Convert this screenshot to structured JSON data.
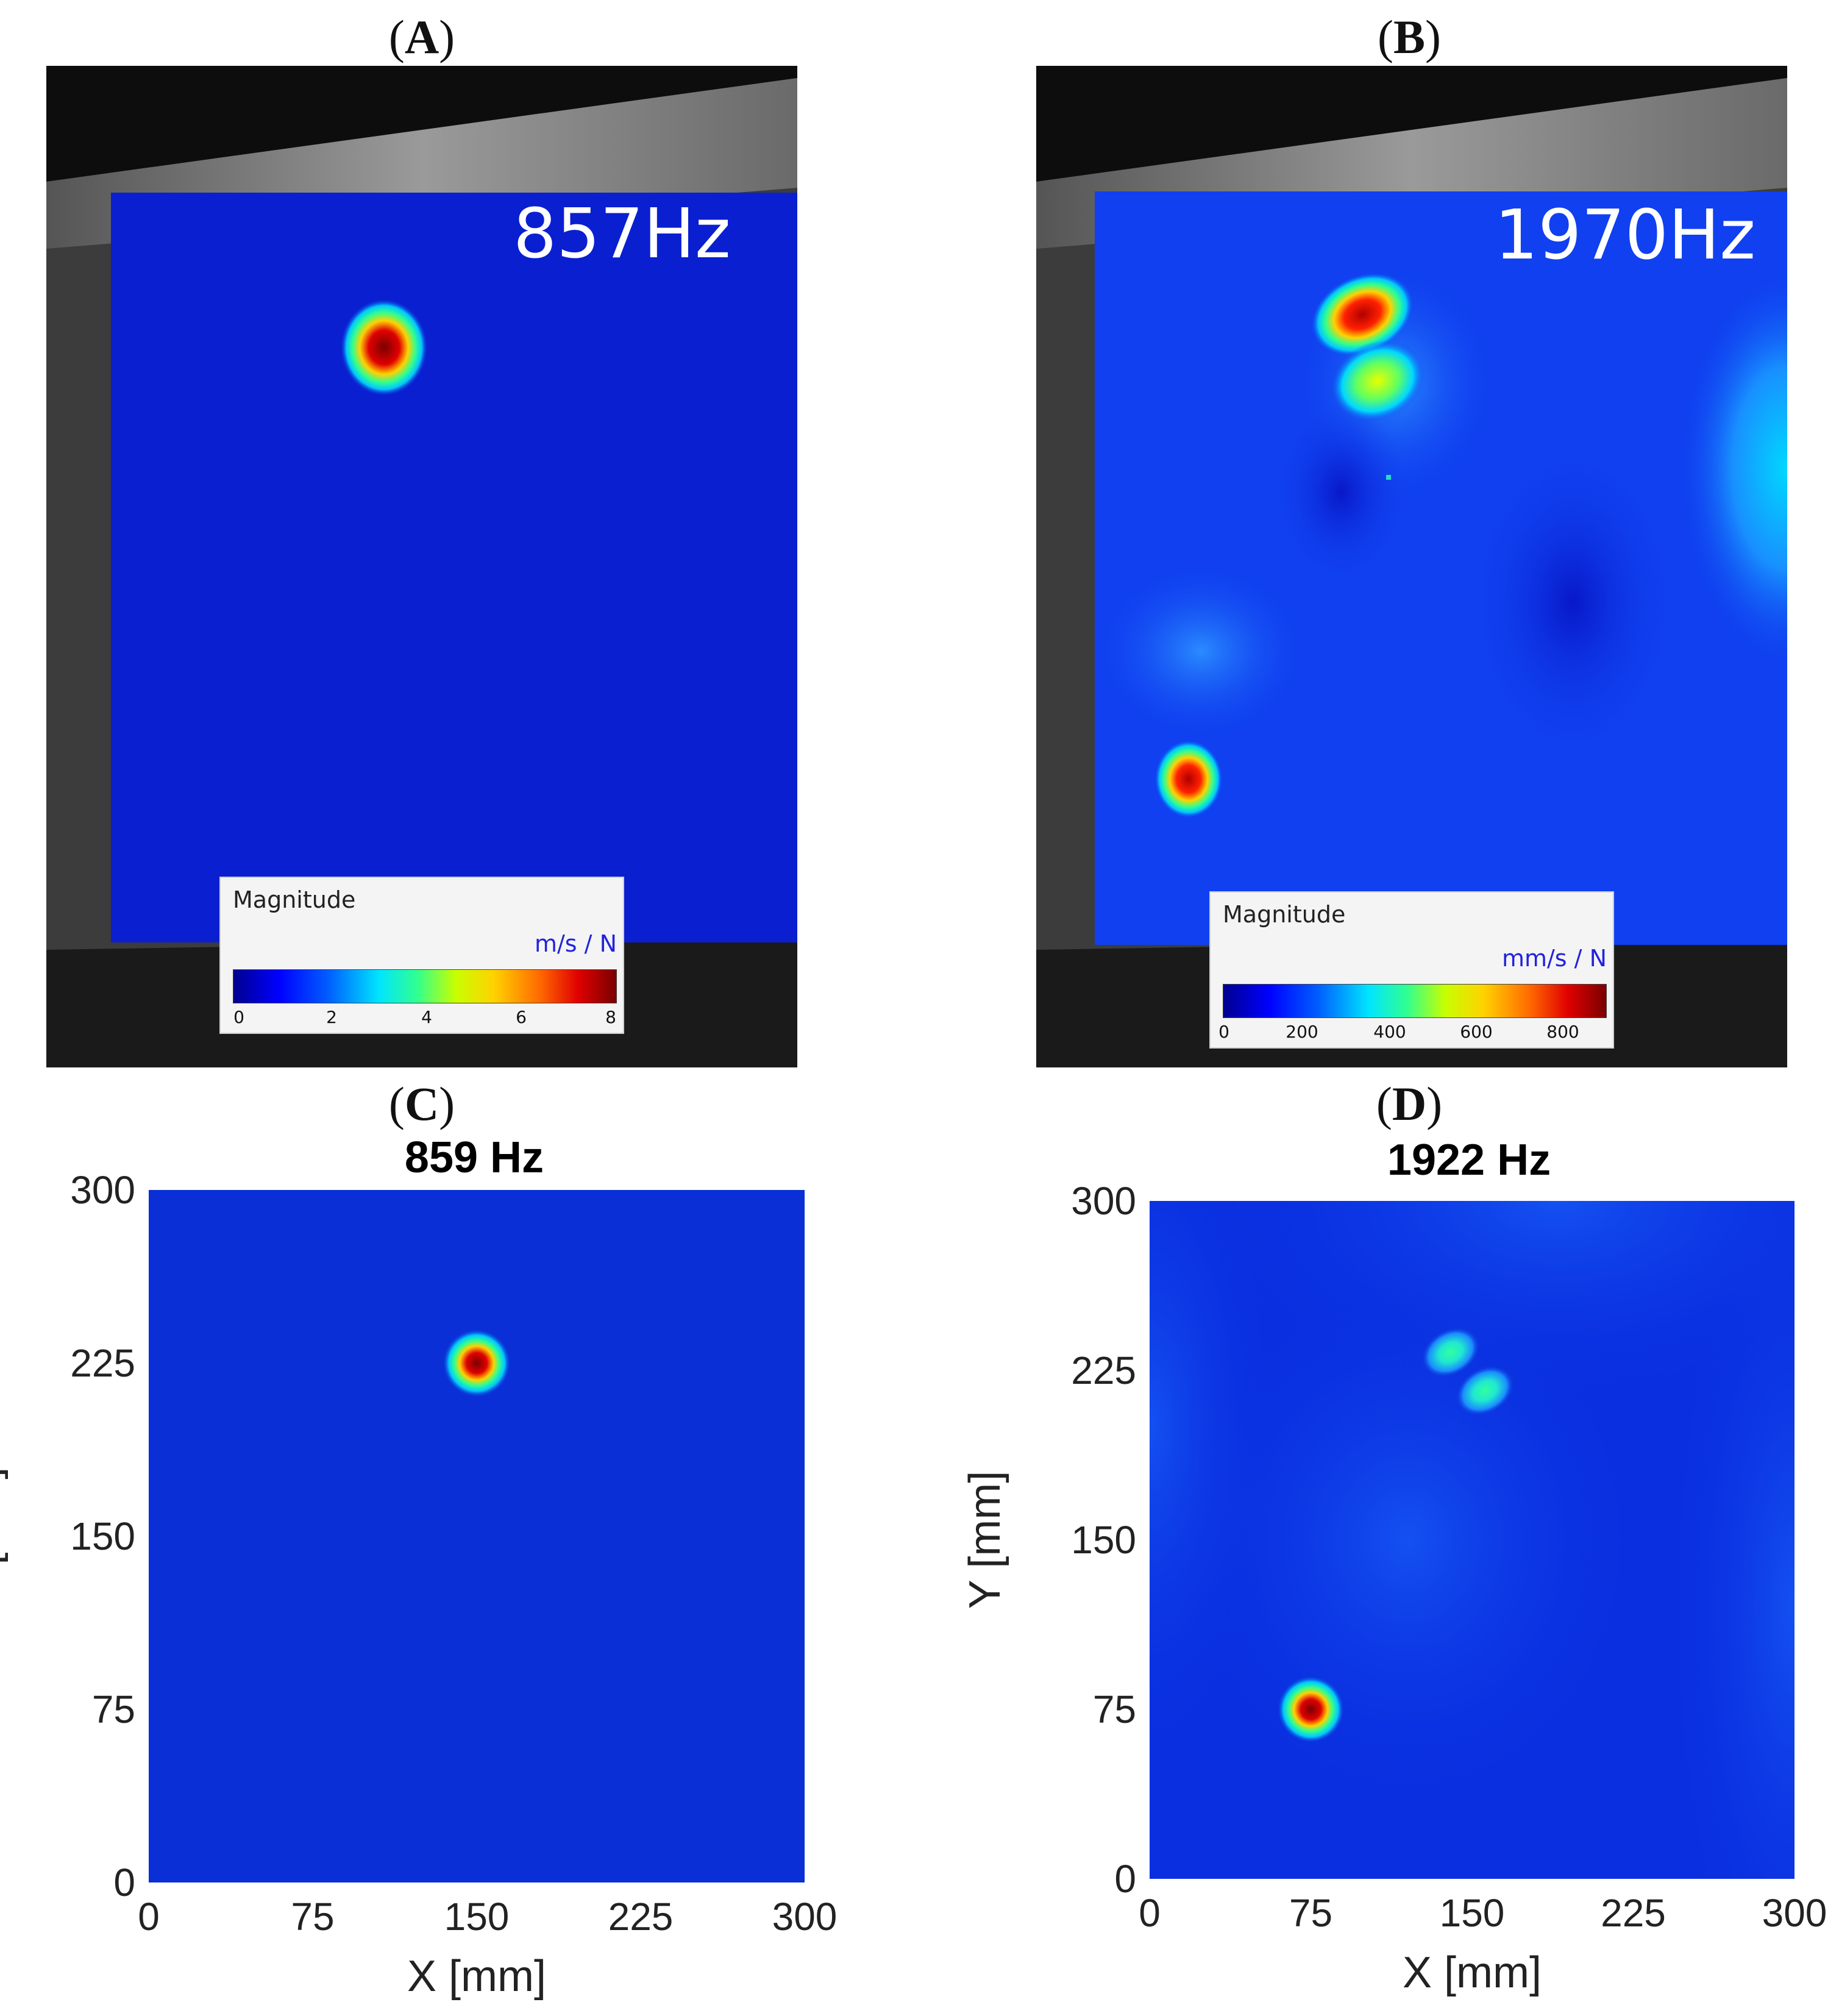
{
  "panels": {
    "a": {
      "label_letter": "A",
      "freq": "857Hz",
      "legend": {
        "title": "Magnitude",
        "unit": "m/s / N",
        "ticks": [
          "0",
          "2",
          "4",
          "6",
          "8"
        ]
      }
    },
    "b": {
      "label_letter": "B",
      "freq": "1970Hz",
      "legend": {
        "title": "Magnitude",
        "unit": "mm/s / N",
        "ticks": [
          "0",
          "200",
          "400",
          "600",
          "800"
        ]
      }
    },
    "c": {
      "label_letter": "C"
    },
    "d": {
      "label_letter": "D"
    }
  },
  "chart_data": [
    {
      "type": "heatmap",
      "title": "859 Hz",
      "xlabel": "X [mm]",
      "ylabel": "Y [mm]",
      "xlim": [
        0,
        300
      ],
      "ylim": [
        0,
        300
      ],
      "xticks": [
        "0",
        "75",
        "150",
        "225",
        "300"
      ],
      "yticks": [
        "0",
        "75",
        "150",
        "225",
        "300"
      ],
      "colormap": [
        "#00008f",
        "#0000ff",
        "#00e5ff",
        "#ffff00",
        "#ff0000",
        "#7a0000"
      ],
      "background": "#0a2fd6",
      "hotspots": [
        {
          "x": 150,
          "y": 225,
          "peak": "red"
        }
      ]
    },
    {
      "type": "heatmap",
      "title": "1922 Hz",
      "xlabel": "X [mm]",
      "ylabel": "Y [mm]",
      "xlim": [
        0,
        300
      ],
      "ylim": [
        0,
        300
      ],
      "xticks": [
        "0",
        "75",
        "150",
        "225",
        "300"
      ],
      "yticks": [
        "0",
        "75",
        "150",
        "225",
        "300"
      ],
      "colormap": [
        "#00008f",
        "#0000ff",
        "#00e5ff",
        "#ffff00",
        "#ff0000",
        "#7a0000"
      ],
      "background": "#0a2fe0",
      "hotspots": [
        {
          "x": 140,
          "y": 233,
          "peak": "green"
        },
        {
          "x": 156,
          "y": 216,
          "peak": "green"
        },
        {
          "x": 75,
          "y": 75,
          "peak": "red"
        }
      ]
    }
  ]
}
